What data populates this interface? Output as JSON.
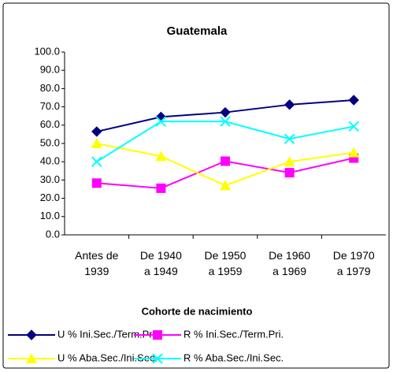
{
  "chart_data": {
    "type": "line",
    "title": "Guatemala",
    "x_label": "Cohorte de nacimiento",
    "categories": [
      "Antes de\n1939",
      "De 1940\na 1949",
      "De 1950\na 1959",
      "De 1960\na 1969",
      "De 1970\na 1979"
    ],
    "series": [
      {
        "name": "U % Ini.Sec./Term.Pri.",
        "color": "#000080",
        "marker": "diamond",
        "values": [
          56.5,
          64.5,
          67,
          71.2,
          73.7
        ]
      },
      {
        "name": "R % Ini.Sec./Term.Pri.",
        "color": "#ff00ff",
        "marker": "square",
        "values": [
          28.3,
          25.5,
          40.3,
          34,
          42
        ]
      },
      {
        "name": "U % Aba.Sec./Ini.Sec.",
        "color": "#ffff00",
        "marker": "triangle",
        "values": [
          50,
          43,
          27,
          40,
          45
        ]
      },
      {
        "name": "R % Aba.Sec./Ini.Sec.",
        "color": "#00ffff",
        "marker": "x",
        "values": [
          40,
          62,
          62,
          52.5,
          59.3
        ]
      }
    ],
    "ylim": [
      0,
      100
    ],
    "yticks": [
      {
        "value": 0,
        "label": "0.0"
      },
      {
        "value": 10,
        "label": "10.0"
      },
      {
        "value": 20,
        "label": "20.0"
      },
      {
        "value": 30,
        "label": "30.0"
      },
      {
        "value": 40,
        "label": "40.0"
      },
      {
        "value": 50,
        "label": "50.0"
      },
      {
        "value": 60,
        "label": "60.0"
      },
      {
        "value": 70,
        "label": "70.0"
      },
      {
        "value": 80,
        "label": "80.0"
      },
      {
        "value": 90,
        "label": "90.0"
      },
      {
        "value": 100,
        "label": "100.0"
      }
    ],
    "grid": false
  }
}
